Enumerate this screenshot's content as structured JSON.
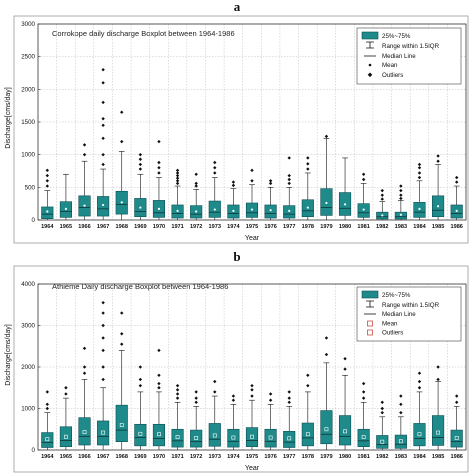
{
  "chart_data": [
    {
      "panel_label": "a",
      "type": "boxplot",
      "title": "Corrokope daily discharge Boxplot between 1964-1986",
      "xlabel": "Year",
      "ylabel": "Discharge[cms/day]",
      "ylim": [
        0,
        3000
      ],
      "yticks": [
        "0",
        "500",
        "1000",
        "1500",
        "2000",
        "2500",
        "3000"
      ],
      "ytick_values": [
        0,
        500,
        1000,
        1500,
        2000,
        2500,
        3000
      ],
      "grid": true,
      "legend_position": "top-right",
      "legend": [
        "25%~75%",
        "Range within 1.5IQR",
        "Median Line",
        "Mean",
        "Outliers"
      ],
      "mean_marker": "dot",
      "outlier_marker": "diamond",
      "colors": {
        "box": "#1e8a8a",
        "box_edge": "#0b4f55",
        "mean": "#ffffff",
        "outlier": "#111111",
        "grid": "#bdbdbd"
      },
      "categories": [
        "1964",
        "1965",
        "1966",
        "1967",
        "1968",
        "1969",
        "1970",
        "1971",
        "1972",
        "1973",
        "1974",
        "1975",
        "1976",
        "1977",
        "1978",
        "1979",
        "1980",
        "1981",
        "1982",
        "1983",
        "1984",
        "1985",
        "1986"
      ],
      "boxes": [
        {
          "q1": 20,
          "median": 90,
          "q3": 200,
          "whisker_low": 0,
          "whisker_high": 450,
          "mean": 130,
          "outliers": [
            520,
            600,
            680,
            760
          ]
        },
        {
          "q1": 40,
          "median": 130,
          "q3": 280,
          "whisker_low": 0,
          "whisker_high": 700,
          "mean": 170,
          "outliers": []
        },
        {
          "q1": 60,
          "median": 190,
          "q3": 370,
          "whisker_low": 0,
          "whisker_high": 900,
          "mean": 220,
          "outliers": [
            1000,
            1150
          ]
        },
        {
          "q1": 60,
          "median": 170,
          "q3": 360,
          "whisker_low": 0,
          "whisker_high": 780,
          "mean": 230,
          "outliers": [
            850,
            1000,
            1250,
            1450,
            1550,
            1800,
            2100,
            2300
          ]
        },
        {
          "q1": 90,
          "median": 240,
          "q3": 440,
          "whisker_low": 0,
          "whisker_high": 1050,
          "mean": 270,
          "outliers": [
            1200,
            1650
          ]
        },
        {
          "q1": 50,
          "median": 130,
          "q3": 330,
          "whisker_low": 0,
          "whisker_high": 700,
          "mean": 190,
          "outliers": [
            780,
            850,
            930,
            1000
          ]
        },
        {
          "q1": 40,
          "median": 110,
          "q3": 300,
          "whisker_low": 0,
          "whisker_high": 650,
          "mean": 170,
          "outliers": [
            720,
            800,
            880,
            1200
          ]
        },
        {
          "q1": 30,
          "median": 100,
          "q3": 230,
          "whisker_low": 0,
          "whisker_high": 520,
          "mean": 140,
          "outliers": [
            560,
            600,
            640,
            680,
            720,
            760
          ]
        },
        {
          "q1": 30,
          "median": 90,
          "q3": 220,
          "whisker_low": 0,
          "whisker_high": 470,
          "mean": 130,
          "outliers": [
            520,
            560,
            700
          ]
        },
        {
          "q1": 40,
          "median": 120,
          "q3": 290,
          "whisker_low": 0,
          "whisker_high": 650,
          "mean": 160,
          "outliers": [
            720,
            800,
            880
          ]
        },
        {
          "q1": 30,
          "median": 100,
          "q3": 230,
          "whisker_low": 0,
          "whisker_high": 480,
          "mean": 140,
          "outliers": [
            530,
            580
          ]
        },
        {
          "q1": 40,
          "median": 110,
          "q3": 260,
          "whisker_low": 0,
          "whisker_high": 540,
          "mean": 160,
          "outliers": [
            600,
            760
          ]
        },
        {
          "q1": 30,
          "median": 100,
          "q3": 230,
          "whisker_low": 0,
          "whisker_high": 500,
          "mean": 150,
          "outliers": [
            560,
            600
          ]
        },
        {
          "q1": 30,
          "median": 90,
          "q3": 220,
          "whisker_low": 0,
          "whisker_high": 500,
          "mean": 140,
          "outliers": [
            560,
            620,
            680,
            950
          ]
        },
        {
          "q1": 50,
          "median": 140,
          "q3": 310,
          "whisker_low": 0,
          "whisker_high": 720,
          "mean": 190,
          "outliers": [
            780,
            860,
            950
          ]
        },
        {
          "q1": 70,
          "median": 190,
          "q3": 480,
          "whisker_low": 0,
          "whisker_high": 1250,
          "mean": 260,
          "outliers": [
            1280
          ]
        },
        {
          "q1": 70,
          "median": 180,
          "q3": 420,
          "whisker_low": 0,
          "whisker_high": 950,
          "mean": 240,
          "outliers": []
        },
        {
          "q1": 40,
          "median": 110,
          "q3": 250,
          "whisker_low": 0,
          "whisker_high": 560,
          "mean": 160,
          "outliers": [
            620,
            700
          ]
        },
        {
          "q1": 15,
          "median": 50,
          "q3": 120,
          "whisker_low": 0,
          "whisker_high": 280,
          "mean": 70,
          "outliers": [
            320,
            380,
            450
          ]
        },
        {
          "q1": 15,
          "median": 50,
          "q3": 120,
          "whisker_low": 0,
          "whisker_high": 300,
          "mean": 80,
          "outliers": [
            330,
            380,
            450,
            520
          ]
        },
        {
          "q1": 40,
          "median": 120,
          "q3": 270,
          "whisker_low": 0,
          "whisker_high": 600,
          "mean": 170,
          "outliers": [
            650,
            720,
            800,
            850
          ]
        },
        {
          "q1": 50,
          "median": 150,
          "q3": 370,
          "whisker_low": 0,
          "whisker_high": 850,
          "mean": 210,
          "outliers": [
            900,
            980
          ]
        },
        {
          "q1": 30,
          "median": 100,
          "q3": 230,
          "whisker_low": 0,
          "whisker_high": 520,
          "mean": 140,
          "outliers": [
            580,
            650
          ]
        }
      ]
    },
    {
      "panel_label": "b",
      "type": "boxplot",
      "title": "Athième Daily discharge Boxplot between 1964-1986",
      "xlabel": "Year",
      "ylabel": "Discharge[cms/day]",
      "ylim": [
        0,
        4000
      ],
      "yticks": [
        "0",
        "1000",
        "2000",
        "3000",
        "4000"
      ],
      "ytick_values": [
        0,
        1000,
        2000,
        3000,
        4000
      ],
      "grid": true,
      "legend_position": "top-right",
      "legend": [
        "25%~75%",
        "Range within 1.5IQR",
        "Median Line",
        "Mean",
        "Outliers"
      ],
      "mean_marker": "square",
      "outlier_marker": "diamond",
      "colors": {
        "box": "#1e8a8a",
        "box_edge": "#0b4f55",
        "mean": "#ffffff",
        "outlier": "#111111",
        "mean_legend": "#c0392b",
        "grid": "#bdbdbd"
      },
      "categories": [
        "1964",
        "1965",
        "1966",
        "1967",
        "1968",
        "1969",
        "1970",
        "1971",
        "1972",
        "1973",
        "1974",
        "1975",
        "1976",
        "1977",
        "1978",
        "1979",
        "1980",
        "1981",
        "1982",
        "1983",
        "1984",
        "1985",
        "1986"
      ],
      "boxes": [
        {
          "q1": 60,
          "median": 180,
          "q3": 420,
          "whisker_low": 0,
          "whisker_high": 900,
          "mean": 260,
          "outliers": [
            1000,
            1100,
            1400
          ]
        },
        {
          "q1": 80,
          "median": 230,
          "q3": 560,
          "whisker_low": 0,
          "whisker_high": 1250,
          "mean": 320,
          "outliers": [
            1350,
            1500
          ]
        },
        {
          "q1": 120,
          "median": 330,
          "q3": 780,
          "whisker_low": 0,
          "whisker_high": 1700,
          "mean": 430,
          "outliers": [
            1850,
            2000,
            2450
          ]
        },
        {
          "q1": 120,
          "median": 330,
          "q3": 700,
          "whisker_low": 0,
          "whisker_high": 1500,
          "mean": 420,
          "outliers": [
            1700,
            2000,
            2400,
            2700,
            3000,
            3300,
            3550
          ]
        },
        {
          "q1": 200,
          "median": 480,
          "q3": 1080,
          "whisker_low": 0,
          "whisker_high": 2400,
          "mean": 600,
          "outliers": [
            2550,
            2800,
            3300
          ]
        },
        {
          "q1": 100,
          "median": 300,
          "q3": 620,
          "whisker_low": 0,
          "whisker_high": 1400,
          "mean": 390,
          "outliers": [
            1550,
            1700,
            2000
          ]
        },
        {
          "q1": 100,
          "median": 280,
          "q3": 620,
          "whisker_low": 0,
          "whisker_high": 1400,
          "mean": 380,
          "outliers": [
            1500,
            1600,
            1800,
            2400
          ]
        },
        {
          "q1": 70,
          "median": 220,
          "q3": 500,
          "whisker_low": 0,
          "whisker_high": 1150,
          "mean": 310,
          "outliers": [
            1250,
            1350,
            1450,
            1550
          ]
        },
        {
          "q1": 70,
          "median": 200,
          "q3": 480,
          "whisker_low": 0,
          "whisker_high": 1050,
          "mean": 290,
          "outliers": [
            1150,
            1250,
            1400
          ]
        },
        {
          "q1": 90,
          "median": 260,
          "q3": 640,
          "whisker_low": 0,
          "whisker_high": 1300,
          "mean": 350,
          "outliers": [
            1400,
            1650
          ]
        },
        {
          "q1": 70,
          "median": 210,
          "q3": 500,
          "whisker_low": 0,
          "whisker_high": 1100,
          "mean": 300,
          "outliers": [
            1200,
            1300
          ]
        },
        {
          "q1": 80,
          "median": 230,
          "q3": 540,
          "whisker_low": 0,
          "whisker_high": 1200,
          "mean": 320,
          "outliers": [
            1300,
            1450,
            1550
          ]
        },
        {
          "q1": 70,
          "median": 210,
          "q3": 500,
          "whisker_low": 0,
          "whisker_high": 1100,
          "mean": 300,
          "outliers": [
            1200,
            1350
          ]
        },
        {
          "q1": 60,
          "median": 190,
          "q3": 450,
          "whisker_low": 0,
          "whisker_high": 1050,
          "mean": 280,
          "outliers": [
            1150,
            1250,
            1400
          ]
        },
        {
          "q1": 100,
          "median": 290,
          "q3": 650,
          "whisker_low": 0,
          "whisker_high": 1400,
          "mean": 380,
          "outliers": [
            1550,
            1800
          ]
        },
        {
          "q1": 150,
          "median": 380,
          "q3": 950,
          "whisker_low": 0,
          "whisker_high": 2100,
          "mean": 500,
          "outliers": [
            2300,
            2700
          ]
        },
        {
          "q1": 120,
          "median": 330,
          "q3": 830,
          "whisker_low": 0,
          "whisker_high": 1800,
          "mean": 450,
          "outliers": [
            1950,
            2200
          ]
        },
        {
          "q1": 80,
          "median": 220,
          "q3": 500,
          "whisker_low": 0,
          "whisker_high": 1150,
          "mean": 310,
          "outliers": [
            1250,
            1400,
            1600
          ]
        },
        {
          "q1": 40,
          "median": 130,
          "q3": 350,
          "whisker_low": 0,
          "whisker_high": 800,
          "mean": 200,
          "outliers": [
            900,
            1000,
            1150
          ]
        },
        {
          "q1": 40,
          "median": 140,
          "q3": 360,
          "whisker_low": 0,
          "whisker_high": 800,
          "mean": 210,
          "outliers": [
            900,
            1100,
            1300
          ]
        },
        {
          "q1": 100,
          "median": 280,
          "q3": 640,
          "whisker_low": 0,
          "whisker_high": 1400,
          "mean": 380,
          "outliers": [
            1500,
            1650,
            1850
          ]
        },
        {
          "q1": 110,
          "median": 300,
          "q3": 830,
          "whisker_low": 0,
          "whisker_high": 1650,
          "mean": 420,
          "outliers": [
            1700,
            2000
          ]
        },
        {
          "q1": 70,
          "median": 200,
          "q3": 480,
          "whisker_low": 0,
          "whisker_high": 1050,
          "mean": 290,
          "outliers": [
            1150,
            1300
          ]
        }
      ]
    }
  ]
}
